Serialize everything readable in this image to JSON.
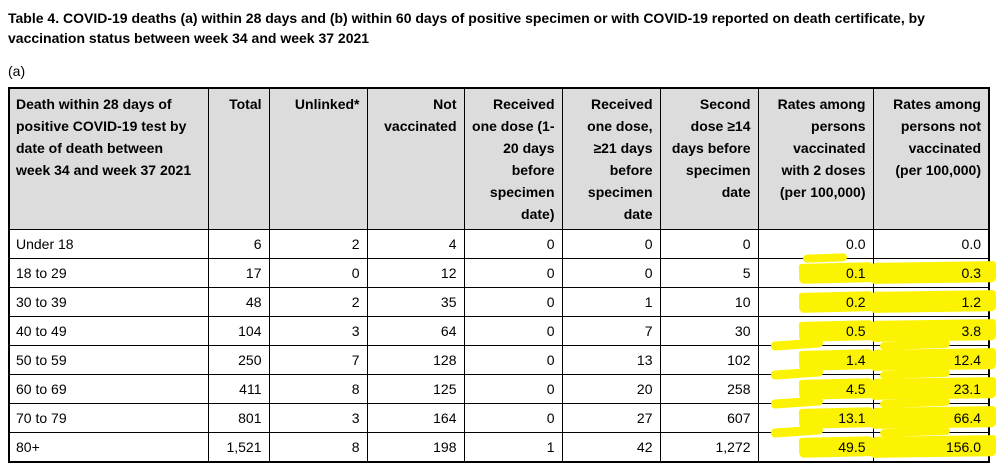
{
  "title": "Table 4. COVID-19 deaths (a) within 28 days and (b) within 60 days of positive specimen or with COVID-19 reported on death certificate, by vaccination status between week 34 and week 37 2021",
  "section_label": "(a)",
  "colors": {
    "header_bg": "#dcdcdc",
    "highlight": "#fcf303",
    "border": "#000000",
    "text": "#000000"
  },
  "table": {
    "headers": [
      "Death within 28 days of positive COVID-19 test by date of death between week 34 and week 37 2021",
      "Total",
      "Unlinked*",
      "Not vaccinated",
      "Received one dose (1-20 days before specimen date)",
      "Received one dose, ≥21 days before specimen date",
      "Second dose ≥14 days before specimen date",
      "Rates among persons vaccinated with 2 doses (per 100,000)",
      "Rates among persons not vaccinated (per 100,000)"
    ],
    "rows": [
      {
        "cells": [
          "Under 18",
          "6",
          "2",
          "4",
          "0",
          "0",
          "0",
          "0.0",
          "0.0"
        ],
        "rates_highlighted": false
      },
      {
        "cells": [
          "18 to 29",
          "17",
          "0",
          "12",
          "0",
          "0",
          "5",
          "0.1",
          "0.3"
        ],
        "rates_highlighted": true
      },
      {
        "cells": [
          "30 to 39",
          "48",
          "2",
          "35",
          "0",
          "1",
          "10",
          "0.2",
          "1.2"
        ],
        "rates_highlighted": true
      },
      {
        "cells": [
          "40 to 49",
          "104",
          "3",
          "64",
          "0",
          "7",
          "30",
          "0.5",
          "3.8"
        ],
        "rates_highlighted": true
      },
      {
        "cells": [
          "50 to 59",
          "250",
          "7",
          "128",
          "0",
          "13",
          "102",
          "1.4",
          "12.4"
        ],
        "rates_highlighted": true
      },
      {
        "cells": [
          "60 to 69",
          "411",
          "8",
          "125",
          "0",
          "20",
          "258",
          "4.5",
          "23.1"
        ],
        "rates_highlighted": true
      },
      {
        "cells": [
          "70 to 79",
          "801",
          "3",
          "164",
          "0",
          "27",
          "607",
          "13.1",
          "66.4"
        ],
        "rates_highlighted": true
      },
      {
        "cells": [
          "80+",
          "1,521",
          "8",
          "198",
          "1",
          "42",
          "1,272",
          "49.5",
          "156.0"
        ],
        "rates_highlighted": true
      }
    ]
  }
}
